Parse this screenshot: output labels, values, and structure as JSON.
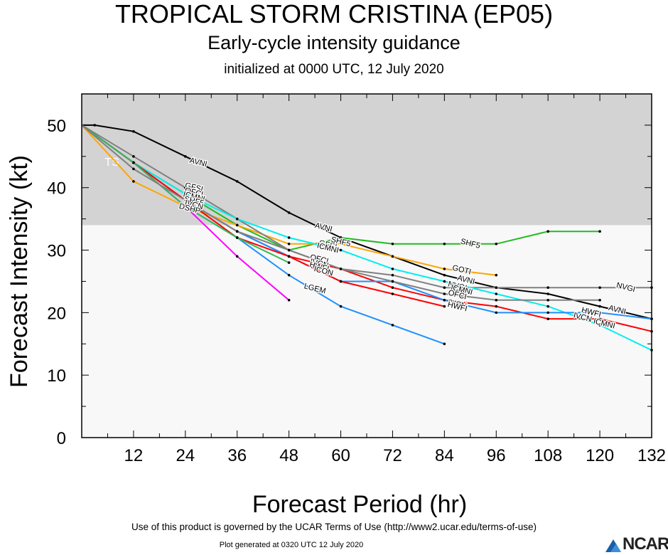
{
  "header": {
    "title": "TROPICAL STORM CRISTINA (EP05)",
    "subtitle": "Early-cycle intensity guidance",
    "init": "initialized at 0000 UTC, 12 July 2020"
  },
  "footer": {
    "terms": "Use of this product is governed by the UCAR Terms of Use (http://www2.ucar.edu/terms-of-use)",
    "generated": "Plot generated at 0320 UTC   12 July 2020",
    "logo": "NCAR"
  },
  "chart_data": {
    "type": "line",
    "xlabel": "Forecast Period (hr)",
    "ylabel": "Forecast Intensity (kt)",
    "xlim": [
      0,
      132
    ],
    "ylim": [
      0,
      55
    ],
    "xticks": [
      12,
      24,
      36,
      48,
      60,
      72,
      84,
      96,
      108,
      120,
      132
    ],
    "yticks": [
      0,
      10,
      20,
      30,
      40,
      50
    ],
    "grid": false,
    "band": {
      "label": "TS",
      "from": 34,
      "to": 55,
      "color": "#d3d3d3"
    },
    "series": [
      {
        "name": "AVNI",
        "color": "#000000",
        "x": [
          0,
          3,
          12,
          24,
          36,
          48,
          60,
          72,
          84,
          96,
          108,
          120,
          132
        ],
        "y": [
          50,
          50,
          49,
          45,
          41,
          36,
          32,
          29,
          26,
          24,
          23,
          21,
          19
        ]
      },
      {
        "name": "SHF5",
        "color": "#22bb22",
        "x": [
          0,
          12,
          24,
          36,
          48,
          60,
          72,
          84,
          96,
          108,
          120
        ],
        "y": [
          50,
          44,
          39,
          34,
          30,
          32,
          31,
          31,
          31,
          33,
          33
        ]
      },
      {
        "name": "GOTI",
        "color": "#ffa500",
        "x": [
          0,
          12,
          24,
          36,
          48,
          60,
          72,
          84,
          96
        ],
        "y": [
          50,
          41,
          37,
          34,
          31,
          31,
          29,
          27,
          26
        ]
      },
      {
        "name": "NVGI",
        "color": "#808080",
        "x": [
          0,
          12,
          24,
          36,
          48,
          60,
          72,
          84,
          96,
          108,
          120,
          132
        ],
        "y": [
          50,
          45,
          40,
          35,
          30,
          27,
          26,
          24,
          24,
          24,
          24,
          24
        ]
      },
      {
        "name": "IVCN",
        "color": "#ff0000",
        "x": [
          0,
          12,
          24,
          36,
          48,
          60,
          72,
          84,
          96,
          108,
          120,
          132
        ],
        "y": [
          50,
          44,
          38,
          33,
          29,
          27,
          24,
          22,
          21,
          19,
          19,
          17
        ]
      },
      {
        "name": "ICMNI",
        "color": "#00eeee",
        "x": [
          0,
          12,
          24,
          36,
          48,
          60,
          72,
          84,
          96,
          108,
          120,
          132
        ],
        "y": [
          50,
          44,
          39,
          35,
          32,
          30,
          27,
          25,
          23,
          21,
          18,
          14
        ]
      },
      {
        "name": "HWFI",
        "color": "#1e90ff",
        "x": [
          0,
          12,
          24,
          36,
          48,
          60,
          72,
          84,
          96,
          108,
          120,
          132
        ],
        "y": [
          50,
          44,
          38,
          33,
          29,
          25,
          25,
          22,
          20,
          20,
          20,
          19
        ]
      },
      {
        "name": "LGEM",
        "color": "#1e90ff",
        "x": [
          0,
          12,
          24,
          36,
          48,
          60,
          72,
          84
        ],
        "y": [
          50,
          44,
          37,
          32,
          26,
          21,
          18,
          15
        ]
      },
      {
        "name": "OFCI",
        "color": "#ff0000",
        "x": [
          0,
          12,
          24,
          36,
          48,
          60,
          72,
          84
        ],
        "y": [
          50,
          44,
          38,
          32,
          29,
          25,
          23,
          21
        ]
      },
      {
        "name": "DSHP",
        "color": "#ff00ff",
        "x": [
          0,
          12,
          24,
          36,
          48
        ],
        "y": [
          50,
          44,
          37,
          29,
          22
        ]
      },
      {
        "name": "ICON",
        "color": "#33bb55",
        "x": [
          0,
          12,
          24,
          36,
          48
        ],
        "y": [
          50,
          44,
          37,
          32,
          28
        ]
      },
      {
        "name": "GFSI",
        "color": "#808080",
        "x": [
          0,
          12,
          24,
          36,
          48,
          60,
          72,
          84,
          96,
          108,
          120
        ],
        "y": [
          50,
          43,
          38,
          33,
          30,
          27,
          25,
          23,
          22,
          22,
          22
        ]
      }
    ],
    "annotations": [
      {
        "text": "AVNI",
        "x": 27,
        "y": 44
      },
      {
        "text": "AVNI",
        "x": 56,
        "y": 33.6
      },
      {
        "text": "AVNI",
        "x": 89,
        "y": 25.2
      },
      {
        "text": "AVNI",
        "x": 124,
        "y": 20.4
      },
      {
        "text": "SHF5",
        "x": 90,
        "y": 31
      },
      {
        "text": "GOTI",
        "x": 88,
        "y": 26.8
      },
      {
        "text": "NVGI",
        "x": 126,
        "y": 24
      },
      {
        "text": "HWFI",
        "x": 118,
        "y": 20
      },
      {
        "text": "IVCN",
        "x": 116,
        "y": 19.2
      },
      {
        "text": "ICMNI",
        "x": 121,
        "y": 18.2
      },
      {
        "text": "LGEM",
        "x": 54,
        "y": 23.8
      },
      {
        "text": "OFCI",
        "x": 55,
        "y": 28.5
      },
      {
        "text": "IVCN",
        "x": 55,
        "y": 27.8
      },
      {
        "text": "HWFI",
        "x": 55,
        "y": 27.3
      },
      {
        "text": "ICON",
        "x": 56,
        "y": 26.6
      },
      {
        "text": "GFSI",
        "x": 57,
        "y": 30.8
      },
      {
        "text": "SHF5",
        "x": 60,
        "y": 31.3
      },
      {
        "text": "ICMNI",
        "x": 57,
        "y": 30.3
      },
      {
        "text": "NVGI",
        "x": 87,
        "y": 24.2
      },
      {
        "text": "ICMNI",
        "x": 88,
        "y": 23.6
      },
      {
        "text": "OFCI",
        "x": 87,
        "y": 22.8
      },
      {
        "text": "IVCN",
        "x": 87,
        "y": 21.3
      },
      {
        "text": "HWFI",
        "x": 87,
        "y": 20.9
      },
      {
        "text": "GFSI",
        "x": 26,
        "y": 40
      },
      {
        "text": "OFCI",
        "x": 26,
        "y": 39.2
      },
      {
        "text": "ICMNI",
        "x": 26,
        "y": 38.5
      },
      {
        "text": "SHF5",
        "x": 26,
        "y": 37.8
      },
      {
        "text": "IVCN",
        "x": 26,
        "y": 37.2
      },
      {
        "text": "DSHP",
        "x": 25,
        "y": 36.6
      }
    ]
  }
}
